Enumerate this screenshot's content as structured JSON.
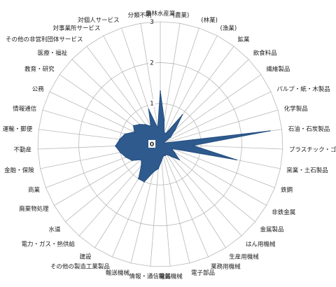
{
  "chart_data": {
    "type": "radar",
    "categories": [
      "農林水産業",
      "(農業)",
      "(林業)",
      "(漁業)",
      "鉱業",
      "飲食料品",
      "繊維製品",
      "パルプ・紙・木製品",
      "化学製品",
      "石油・石炭製品",
      "プラスチック・ゴム",
      "窯業・土石製品",
      "鉄鋼",
      "非鉄金属",
      "金属製品",
      "はん用機械",
      "生産用機械",
      "業務用機械",
      "電子部品",
      "電気機械",
      "情報・通信機器",
      "輸送機械",
      "その他の製造工業製品",
      "建設",
      "電力・ガス・熱供給",
      "水道",
      "廃棄物処理",
      "商業",
      "金融・保険",
      "不動産",
      "運輸・郵便",
      "情報通信",
      "公務",
      "教育・研究",
      "医療・福祉",
      "その他の非営利団体サービス",
      "対事業所サービス",
      "対個人サービス",
      "分類不明"
    ],
    "series": [
      {
        "values": [
          1.3,
          0.6,
          0.3,
          0.3,
          0.9,
          0.5,
          0.3,
          0.1,
          0.1,
          2.7,
          0.8,
          1.9,
          0.3,
          0.4,
          0.6,
          0.4,
          0.3,
          0.3,
          0.3,
          0.4,
          0.6,
          0.7,
          1.0,
          1.0,
          0.7,
          0.6,
          0.8,
          0.9,
          1.0,
          1.1,
          1.0,
          0.9,
          0.7,
          0.8,
          0.7,
          0.6,
          0.5,
          0.9,
          0.4
        ]
      }
    ],
    "rlim": [
      0,
      3
    ],
    "ticks": [
      0,
      1,
      2,
      3
    ],
    "colors": {
      "fill": "#2e5a8e",
      "stroke": "#244e80",
      "grid": "#b8b8b8",
      "text": "#222222"
    }
  }
}
